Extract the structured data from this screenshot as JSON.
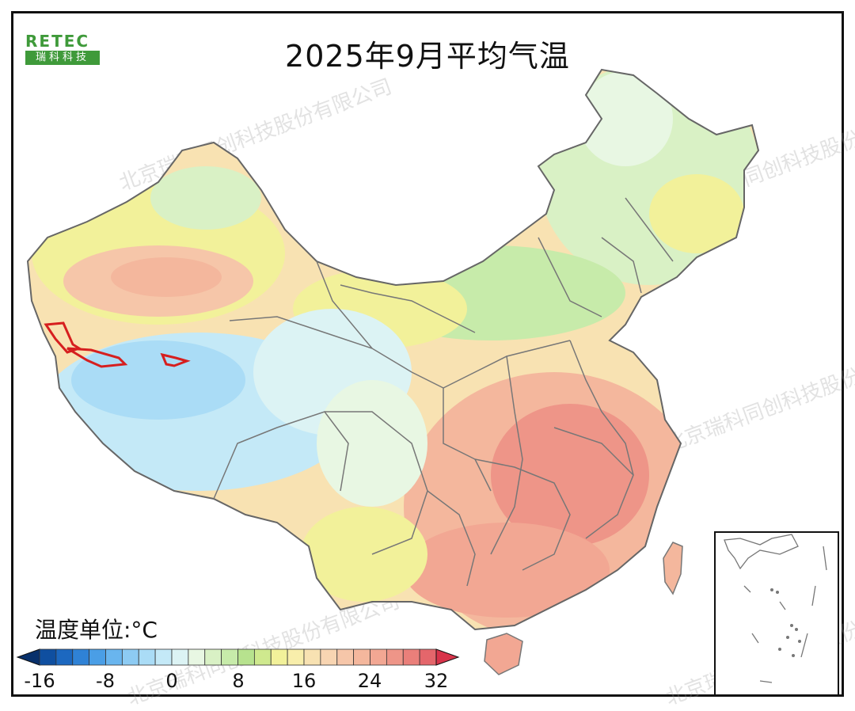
{
  "title": "2025年9月平均气温",
  "logo": {
    "brand": "RETEC",
    "cn": "瑞科科技"
  },
  "legend": {
    "unit_label": "温度单位:°C",
    "ticks": [
      "-16",
      "-8",
      "0",
      "8",
      "16",
      "24",
      "32"
    ],
    "colors": [
      "#08306b",
      "#0f4fa0",
      "#1c68c0",
      "#2f82d6",
      "#4a9ee6",
      "#69b5ee",
      "#8dcbf3",
      "#aadcf6",
      "#c4e9f7",
      "#dcf3f4",
      "#e8f7e3",
      "#d9f1c5",
      "#c7ebaa",
      "#b7e28e",
      "#cfe98e",
      "#f2f19a",
      "#f8eeab",
      "#f8e2b2",
      "#f8d5b2",
      "#f6c6a9",
      "#f4b79d",
      "#f2a793",
      "#ee9588",
      "#ea7f7a",
      "#e4666b",
      "#d8334a"
    ]
  },
  "watermark": "北京瑞科同创科技股份有限公司"
}
